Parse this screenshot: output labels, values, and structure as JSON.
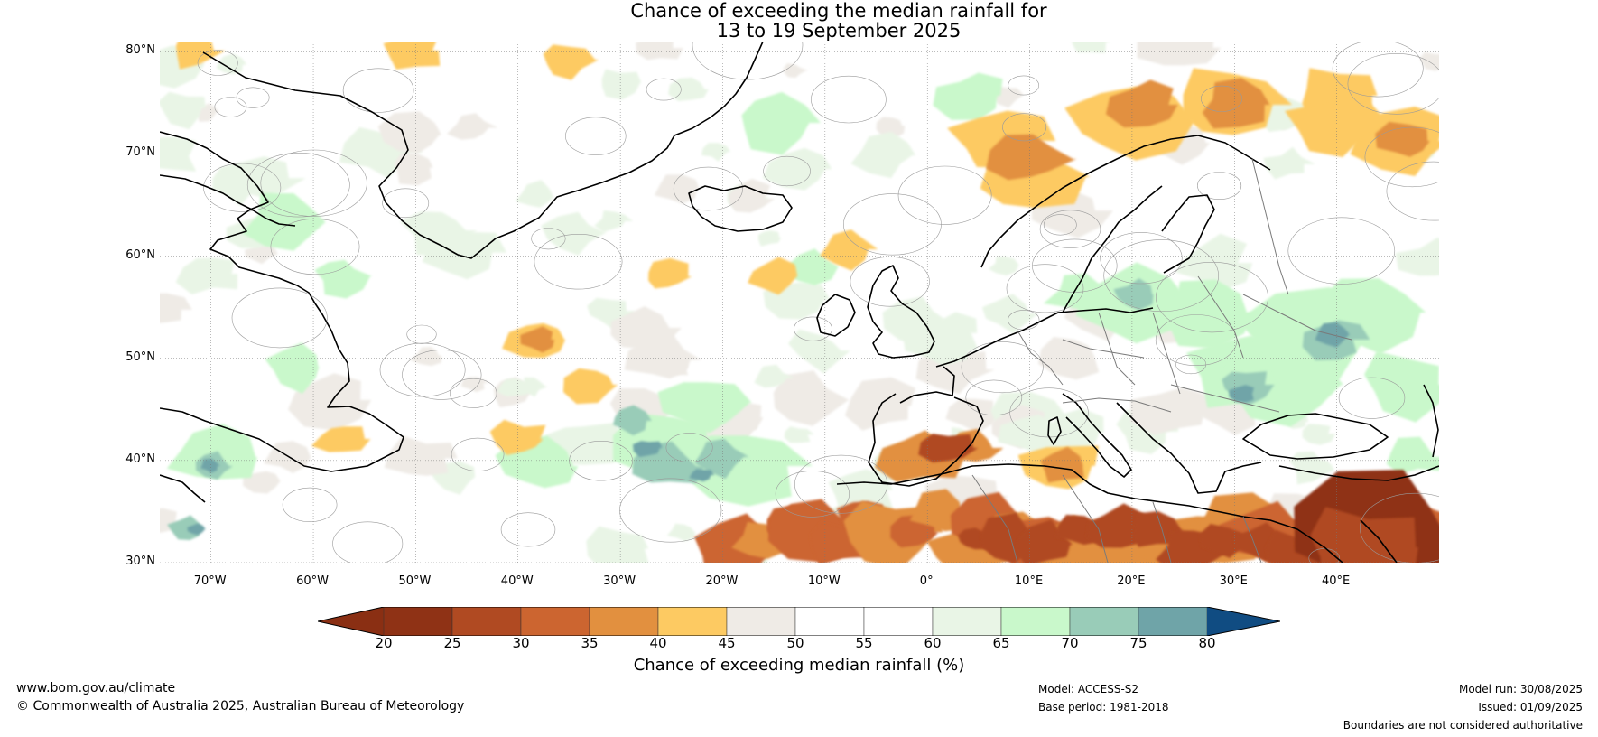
{
  "title": {
    "line1": "Chance of exceeding the median rainfall for",
    "line2": "13 to 19 September 2025"
  },
  "map": {
    "lon_range": [
      -75,
      50
    ],
    "lat_range": [
      30,
      81
    ],
    "lat_ticks": [
      "80°N",
      "70°N",
      "60°N",
      "50°N",
      "40°N",
      "30°N"
    ],
    "lat_values": [
      80,
      70,
      60,
      50,
      40,
      30
    ],
    "lon_ticks": [
      "70°W",
      "60°W",
      "50°W",
      "40°W",
      "30°W",
      "20°W",
      "10°W",
      "0°",
      "10°E",
      "20°E",
      "30°E",
      "40°E"
    ],
    "lon_values": [
      -70,
      -60,
      -50,
      -40,
      -30,
      -20,
      -10,
      0,
      10,
      20,
      30,
      40
    ],
    "gridlines": true,
    "projection": "plate-carree"
  },
  "colorbar": {
    "ticks": [
      "20",
      "25",
      "30",
      "35",
      "40",
      "45",
      "50",
      "55",
      "60",
      "65",
      "70",
      "75",
      "80"
    ],
    "colors": [
      "#8f3215",
      "#b04a22",
      "#cc6530",
      "#e2903f",
      "#fdca62",
      "#efebe6",
      "#ffffff",
      "#ffffff",
      "#e9f5e6",
      "#c9f8cb",
      "#99ccb8",
      "#6fa4a8",
      "#3d7898"
    ],
    "below_color": "#8a2f13",
    "above_color": "#104c82",
    "label": "Chance of exceeding median rainfall (%)"
  },
  "footer": {
    "website": "www.bom.gov.au/climate",
    "copyright": "© Commonwealth of Australia 2025, Australian Bureau of Meteorology",
    "model": "Model: ACCESS-S2",
    "base_period": "Base period: 1981-2018",
    "model_run": "Model run: 30/08/2025",
    "issued": "Issued: 01/09/2025",
    "boundaries": "Boundaries are not considered authoritative"
  }
}
